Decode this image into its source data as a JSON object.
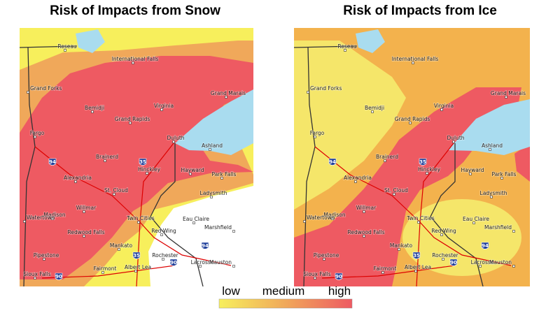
{
  "maps": [
    {
      "title": "Risk of Impacts from Snow"
    },
    {
      "title": "Risk of Impacts from Ice"
    }
  ],
  "cities": [
    "Roseau",
    "International Falls",
    "Grand Forks",
    "Bemidji",
    "Virginia",
    "Grand Marais",
    "Grand Rapids",
    "Fargo",
    "Duluth",
    "Ashland",
    "Brainerd",
    "Hinckley",
    "Hayward",
    "Alexandria",
    "Park Falls",
    "St. Cloud",
    "Ladysmith",
    "Willmar",
    "Madison",
    "Watertown",
    "Twin Cities",
    "Eau Claire",
    "Marshfield",
    "Redwood Falls",
    "Red Wing",
    "Mankato",
    "Pipestone",
    "Rochester",
    "Lacrosse",
    "Mauston",
    "Fairmont",
    "Albert Lea",
    "Sioux Falls"
  ],
  "interstates": [
    "94",
    "35",
    "35",
    "94",
    "90",
    "90"
  ],
  "legend": {
    "labels": [
      "low",
      "medium",
      "high"
    ]
  }
}
